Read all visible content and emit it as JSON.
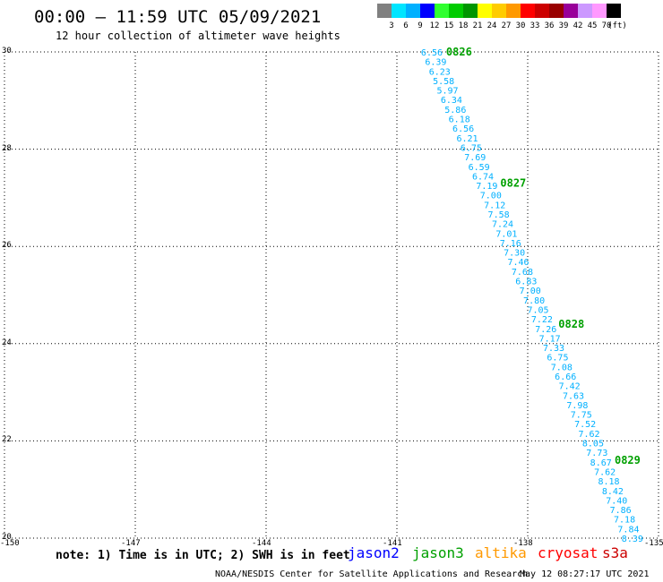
{
  "title": "00:00 – 11:59 UTC 05/09/2021",
  "subtitle": "12 hour collection of altimeter wave heights",
  "colorbar": {
    "colors": [
      "#808080",
      "#00e5ff",
      "#00b0ff",
      "#0000ff",
      "#30ff30",
      "#00cc00",
      "#009600",
      "#ffff00",
      "#ffcc00",
      "#ff9900",
      "#ff0000",
      "#cc0000",
      "#990000",
      "#990099",
      "#cc99ff",
      "#ff99ff",
      "#000000"
    ],
    "labels": [
      "3",
      "6",
      "9",
      "12",
      "15",
      "18",
      "21",
      "24",
      "27",
      "30",
      "33",
      "36",
      "39",
      "42",
      "45",
      "70",
      "(ft)"
    ]
  },
  "axes": {
    "lon_min": -150,
    "lon_max": -135,
    "lat_min": 20,
    "lat_max": 30,
    "lon_labels": [
      "-150",
      "-147",
      "-144",
      "-141",
      "-138",
      "-135"
    ],
    "lat_labels": [
      "30",
      "28",
      "26",
      "24",
      "22",
      "20"
    ],
    "grid": true,
    "grid_style": "dotted"
  },
  "chart_data": {
    "type": "scatter",
    "series_color": "#00b0ff",
    "time_color": "#00a000",
    "track": {
      "start_lon": -140.2,
      "start_lat": 30.0,
      "end_lon": -135.6,
      "end_lat": 20.0,
      "values": [
        "6.56",
        "6.39",
        "6.23",
        "5.58",
        "5.97",
        "6.34",
        "5.86",
        "6.18",
        "6.56",
        "6.21",
        "6.75",
        "7.69",
        "6.59",
        "6.74",
        "7.19",
        "7.00",
        "7.12",
        "7.58",
        "7.24",
        "7.01",
        "7.16",
        "7.30",
        "7.46",
        "7.68",
        "6.83",
        "7.00",
        "7.80",
        "7.05",
        "7.22",
        "7.26",
        "7.17",
        "7.33",
        "6.75",
        "7.08",
        "6.66",
        "7.42",
        "7.63",
        "7.98",
        "7.75",
        "7.52",
        "7.62",
        "8.05",
        "7.73",
        "8.67",
        "7.62",
        "8.18",
        "8.42",
        "7.40",
        "7.86",
        "7.18",
        "7.84",
        "8.39"
      ]
    },
    "times": [
      {
        "label": "0826",
        "lat": 30.0
      },
      {
        "label": "0827",
        "lat": 27.3
      },
      {
        "label": "0828",
        "lat": 24.4
      },
      {
        "label": "0829",
        "lat": 21.6
      }
    ]
  },
  "note": "note: 1) Time is in UTC; 2) SWH is in feet",
  "satellites": [
    {
      "name": "jason2",
      "color": "#0000ff"
    },
    {
      "name": "jason3",
      "color": "#00a000"
    },
    {
      "name": "altika",
      "color": "#ff9900"
    },
    {
      "name": "cryosat",
      "color": "#ff0000"
    },
    {
      "name": "s3a",
      "color": "#cc0000"
    }
  ],
  "credit": "NOAA/NESDIS Center for Satellite Applications and Research",
  "timestamp": "May 12 08:27:17 UTC 2021"
}
